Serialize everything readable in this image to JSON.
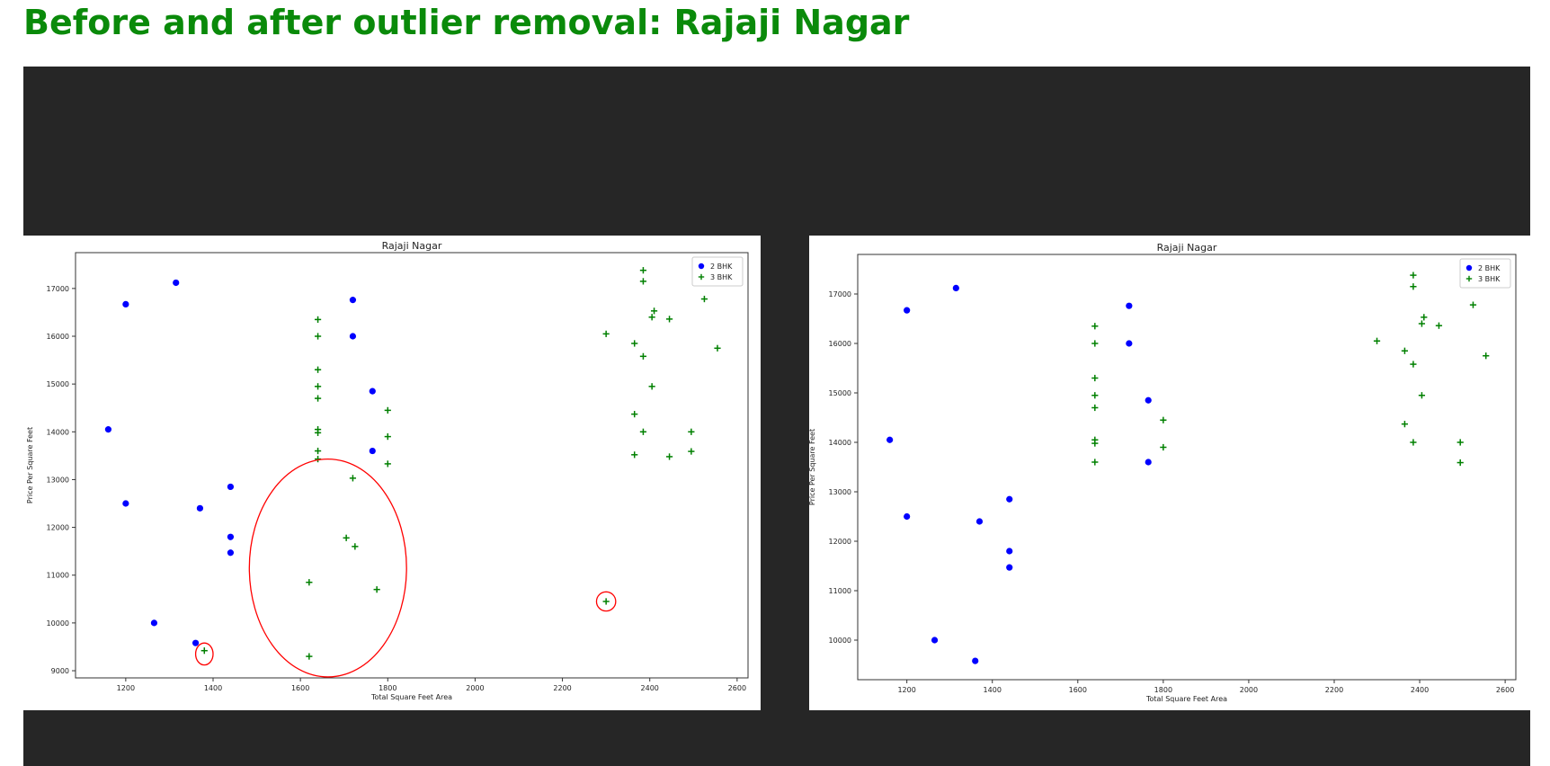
{
  "page": {
    "heading": "Before and after outlier removal: Rajaji Nagar",
    "heading_color": "#0a8a0a",
    "panel_color": "#262626"
  },
  "chart_data": [
    {
      "type": "scatter",
      "title": "Rajaji Nagar",
      "xlabel": "Total Square Feet Area",
      "ylabel": "Price Per Square Feet",
      "xlim": [
        1085,
        2625
      ],
      "ylim": [
        8850,
        17750
      ],
      "xticks": [
        1200,
        1400,
        1600,
        1800,
        2000,
        2200,
        2400,
        2600
      ],
      "yticks": [
        9000,
        10000,
        11000,
        12000,
        13000,
        14000,
        15000,
        16000,
        17000
      ],
      "grid": false,
      "legend_position": "top-right",
      "series": [
        {
          "name": "2 BHK",
          "marker": "circle",
          "color": "#0000ff",
          "points": [
            [
              1160,
              14050
            ],
            [
              1200,
              16670
            ],
            [
              1200,
              12500
            ],
            [
              1265,
              10000
            ],
            [
              1315,
              17120
            ],
            [
              1360,
              9580
            ],
            [
              1370,
              12400
            ],
            [
              1440,
              12850
            ],
            [
              1440,
              11800
            ],
            [
              1440,
              11470
            ],
            [
              1720,
              16760
            ],
            [
              1720,
              16000
            ],
            [
              1765,
              14850
            ],
            [
              1765,
              13600
            ]
          ]
        },
        {
          "name": "3 BHK",
          "marker": "plus",
          "color": "#008000",
          "points": [
            [
              1380,
              9420
            ],
            [
              1620,
              10850
            ],
            [
              1620,
              9300
            ],
            [
              1640,
              16350
            ],
            [
              1640,
              16000
            ],
            [
              1640,
              15300
            ],
            [
              1640,
              14950
            ],
            [
              1640,
              14700
            ],
            [
              1640,
              14050
            ],
            [
              1640,
              13980
            ],
            [
              1640,
              13600
            ],
            [
              1640,
              13430
            ],
            [
              1705,
              11780
            ],
            [
              1720,
              13030
            ],
            [
              1725,
              11600
            ],
            [
              1775,
              10700
            ],
            [
              1800,
              14450
            ],
            [
              1800,
              13900
            ],
            [
              1800,
              13330
            ],
            [
              2300,
              16050
            ],
            [
              2300,
              10450
            ],
            [
              2365,
              15850
            ],
            [
              2365,
              14370
            ],
            [
              2365,
              13520
            ],
            [
              2385,
              17380
            ],
            [
              2385,
              17150
            ],
            [
              2385,
              15580
            ],
            [
              2385,
              14000
            ],
            [
              2405,
              16400
            ],
            [
              2405,
              14950
            ],
            [
              2410,
              16530
            ],
            [
              2445,
              16360
            ],
            [
              2445,
              13480
            ],
            [
              2495,
              14000
            ],
            [
              2495,
              13590
            ],
            [
              2525,
              16780
            ],
            [
              2555,
              15750
            ]
          ]
        }
      ],
      "annotations": [
        {
          "shape": "ellipse",
          "color": "#ff0000",
          "center": [
            1380,
            9350
          ],
          "rx_data": 20,
          "ry_data": 230
        },
        {
          "shape": "ellipse",
          "color": "#ff0000",
          "center": [
            1663,
            11150
          ],
          "rx_data": 180,
          "ry_data": 2280
        },
        {
          "shape": "ellipse",
          "color": "#ff0000",
          "center": [
            2300,
            10450
          ],
          "rx_data": 22,
          "ry_data": 200
        }
      ]
    },
    {
      "type": "scatter",
      "title": "Rajaji Nagar",
      "xlabel": "Total Square Feet Area",
      "ylabel": "Price Per Square Feet",
      "xlim": [
        1085,
        2625
      ],
      "ylim": [
        9200,
        17800
      ],
      "xticks": [
        1200,
        1400,
        1600,
        1800,
        2000,
        2200,
        2400,
        2600
      ],
      "yticks": [
        10000,
        11000,
        12000,
        13000,
        14000,
        15000,
        16000,
        17000
      ],
      "grid": false,
      "legend_position": "top-right",
      "series": [
        {
          "name": "2 BHK",
          "marker": "circle",
          "color": "#0000ff",
          "points": [
            [
              1160,
              14050
            ],
            [
              1200,
              16670
            ],
            [
              1200,
              12500
            ],
            [
              1265,
              10000
            ],
            [
              1315,
              17120
            ],
            [
              1360,
              9580
            ],
            [
              1370,
              12400
            ],
            [
              1440,
              12850
            ],
            [
              1440,
              11800
            ],
            [
              1440,
              11470
            ],
            [
              1720,
              16760
            ],
            [
              1720,
              16000
            ],
            [
              1765,
              14850
            ],
            [
              1765,
              13600
            ]
          ]
        },
        {
          "name": "3 BHK",
          "marker": "plus",
          "color": "#008000",
          "points": [
            [
              1640,
              16350
            ],
            [
              1640,
              16000
            ],
            [
              1640,
              15300
            ],
            [
              1640,
              14950
            ],
            [
              1640,
              14700
            ],
            [
              1640,
              14050
            ],
            [
              1640,
              13980
            ],
            [
              1640,
              13600
            ],
            [
              1800,
              14450
            ],
            [
              1800,
              13900
            ],
            [
              2300,
              16050
            ],
            [
              2365,
              15850
            ],
            [
              2365,
              14370
            ],
            [
              2385,
              17380
            ],
            [
              2385,
              17150
            ],
            [
              2385,
              15580
            ],
            [
              2385,
              14000
            ],
            [
              2405,
              16400
            ],
            [
              2405,
              14950
            ],
            [
              2410,
              16530
            ],
            [
              2445,
              16360
            ],
            [
              2495,
              14000
            ],
            [
              2495,
              13590
            ],
            [
              2525,
              16780
            ],
            [
              2555,
              15750
            ]
          ]
        }
      ],
      "annotations": []
    }
  ]
}
